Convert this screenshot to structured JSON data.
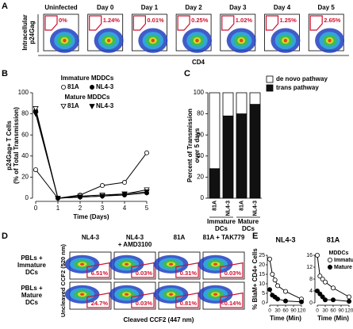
{
  "panel_labels": [
    "A",
    "B",
    "C",
    "D",
    "E"
  ],
  "panel_a": {
    "y_label": [
      "Intracellular",
      "p24Gag"
    ],
    "x_label": "CD4",
    "plots": [
      {
        "title": "Uninfected",
        "gate": "0%"
      },
      {
        "title": "Day 0",
        "gate": "1.24%"
      },
      {
        "title": "Day 1",
        "gate": "0.01%"
      },
      {
        "title": "Day 2",
        "gate": "0.25%"
      },
      {
        "title": "Day 3",
        "gate": "1.02%"
      },
      {
        "title": "Day 4",
        "gate": "1.25%"
      },
      {
        "title": "Day 5",
        "gate": "2.65%"
      }
    ]
  },
  "chart_data": [
    {
      "type": "line_groups",
      "y_label": [
        "p24Gag+ T Cells",
        "(% of Total Transmission)"
      ],
      "x_label": "Time (Days)",
      "x": [
        0,
        1,
        2,
        3,
        4,
        5
      ],
      "xlim": [
        0,
        5
      ],
      "xticks": [
        0,
        1,
        2,
        3,
        4,
        5
      ],
      "ylim": [
        0,
        100
      ],
      "yticks": [
        0,
        20,
        40,
        60,
        80,
        100
      ],
      "groups": [
        {
          "name": "Immature MDDCs",
          "series": [
            {
              "name": "81A",
              "marker": "circle",
              "filled": false,
              "values": [
                27,
                0,
                3,
                12,
                15,
                43
              ]
            },
            {
              "name": "NL4-3",
              "marker": "circle",
              "filled": true,
              "values": [
                83,
                0,
                1,
                2,
                3,
                5
              ]
            }
          ]
        },
        {
          "name": "Mature MDDCs",
          "series": [
            {
              "name": "81A",
              "marker": "triangle-down",
              "filled": false,
              "values": [
                85,
                0,
                2,
                3,
                4,
                8
              ]
            },
            {
              "name": "NL4-3",
              "marker": "triangle-down",
              "filled": true,
              "values": [
                80,
                0,
                1,
                2,
                4,
                6
              ]
            }
          ]
        }
      ]
    },
    {
      "type": "stacked_bar",
      "y_label": [
        "Percent of Transmission",
        "over 5 days"
      ],
      "categories": [
        "81A",
        "NL4-3",
        "81A",
        "NL4-3"
      ],
      "groups": [
        [
          "Immature",
          "DCs"
        ],
        [
          "Mature",
          "DCs"
        ]
      ],
      "ylim": [
        0,
        100
      ],
      "yticks": [
        0,
        20,
        40,
        60,
        80,
        100
      ],
      "series": [
        {
          "name": "trans pathway",
          "color": "#111111",
          "values": [
            28,
            78,
            80,
            89
          ]
        },
        {
          "name": "de novo pathway",
          "color": "#ffffff",
          "values": [
            72,
            22,
            20,
            11
          ]
        }
      ]
    },
    {
      "type": "line",
      "title": "NL4-3",
      "y_label": "% BlaM+ CD4+ Cells",
      "x_label": "Time (Min)",
      "legend": false,
      "x": [
        0,
        10,
        20,
        30,
        60,
        120
      ],
      "xlim": [
        0,
        120
      ],
      "xticks": [
        0,
        30,
        60,
        90,
        120
      ],
      "ylim": [
        0,
        25
      ],
      "yticks": [
        0,
        5,
        10,
        15,
        20,
        25
      ],
      "series": [
        {
          "name": "Immature",
          "filled": false,
          "values": [
            23,
            15,
            12,
            9,
            6,
            2
          ]
        },
        {
          "name": "Mature",
          "filled": true,
          "values": [
            7,
            4,
            3,
            2,
            1,
            0.5
          ]
        }
      ]
    },
    {
      "type": "line",
      "title": "81A",
      "x_label": "Time (Min)",
      "legend": true,
      "legend_title": "MDDCs",
      "x": [
        0,
        10,
        20,
        30,
        60,
        120
      ],
      "xlim": [
        0,
        120
      ],
      "xticks": [
        0,
        30,
        60,
        90,
        120
      ],
      "ylim": [
        0,
        16
      ],
      "yticks": [
        0,
        4,
        8,
        12,
        16
      ],
      "series": [
        {
          "name": "Immature",
          "filled": false,
          "values": [
            16,
            9,
            8,
            7,
            5,
            2
          ]
        },
        {
          "name": "Mature",
          "filled": true,
          "values": [
            4,
            3,
            2,
            1,
            1,
            0.5
          ]
        }
      ]
    }
  ],
  "panel_d": {
    "y_label": "Uncleaved CCF2 (520 nm)",
    "x_label": "Cleaved CCF2 (447 nm)",
    "columns": [
      [
        "NL4-3"
      ],
      [
        "NL4-3",
        "+ AMD3100"
      ],
      [
        "81A"
      ],
      [
        "81A + TAK779"
      ]
    ],
    "rows": [
      {
        "label": [
          "PBLs +",
          "Immature",
          "DCs"
        ],
        "gates": [
          "6.51%",
          "0.03%",
          "0.31%",
          "0.03%"
        ]
      },
      {
        "label": [
          "PBLs +",
          "Mature",
          "DCs"
        ],
        "gates": [
          "24.7%",
          "0.03%",
          "0.81%",
          "<0.14%"
        ]
      }
    ]
  }
}
